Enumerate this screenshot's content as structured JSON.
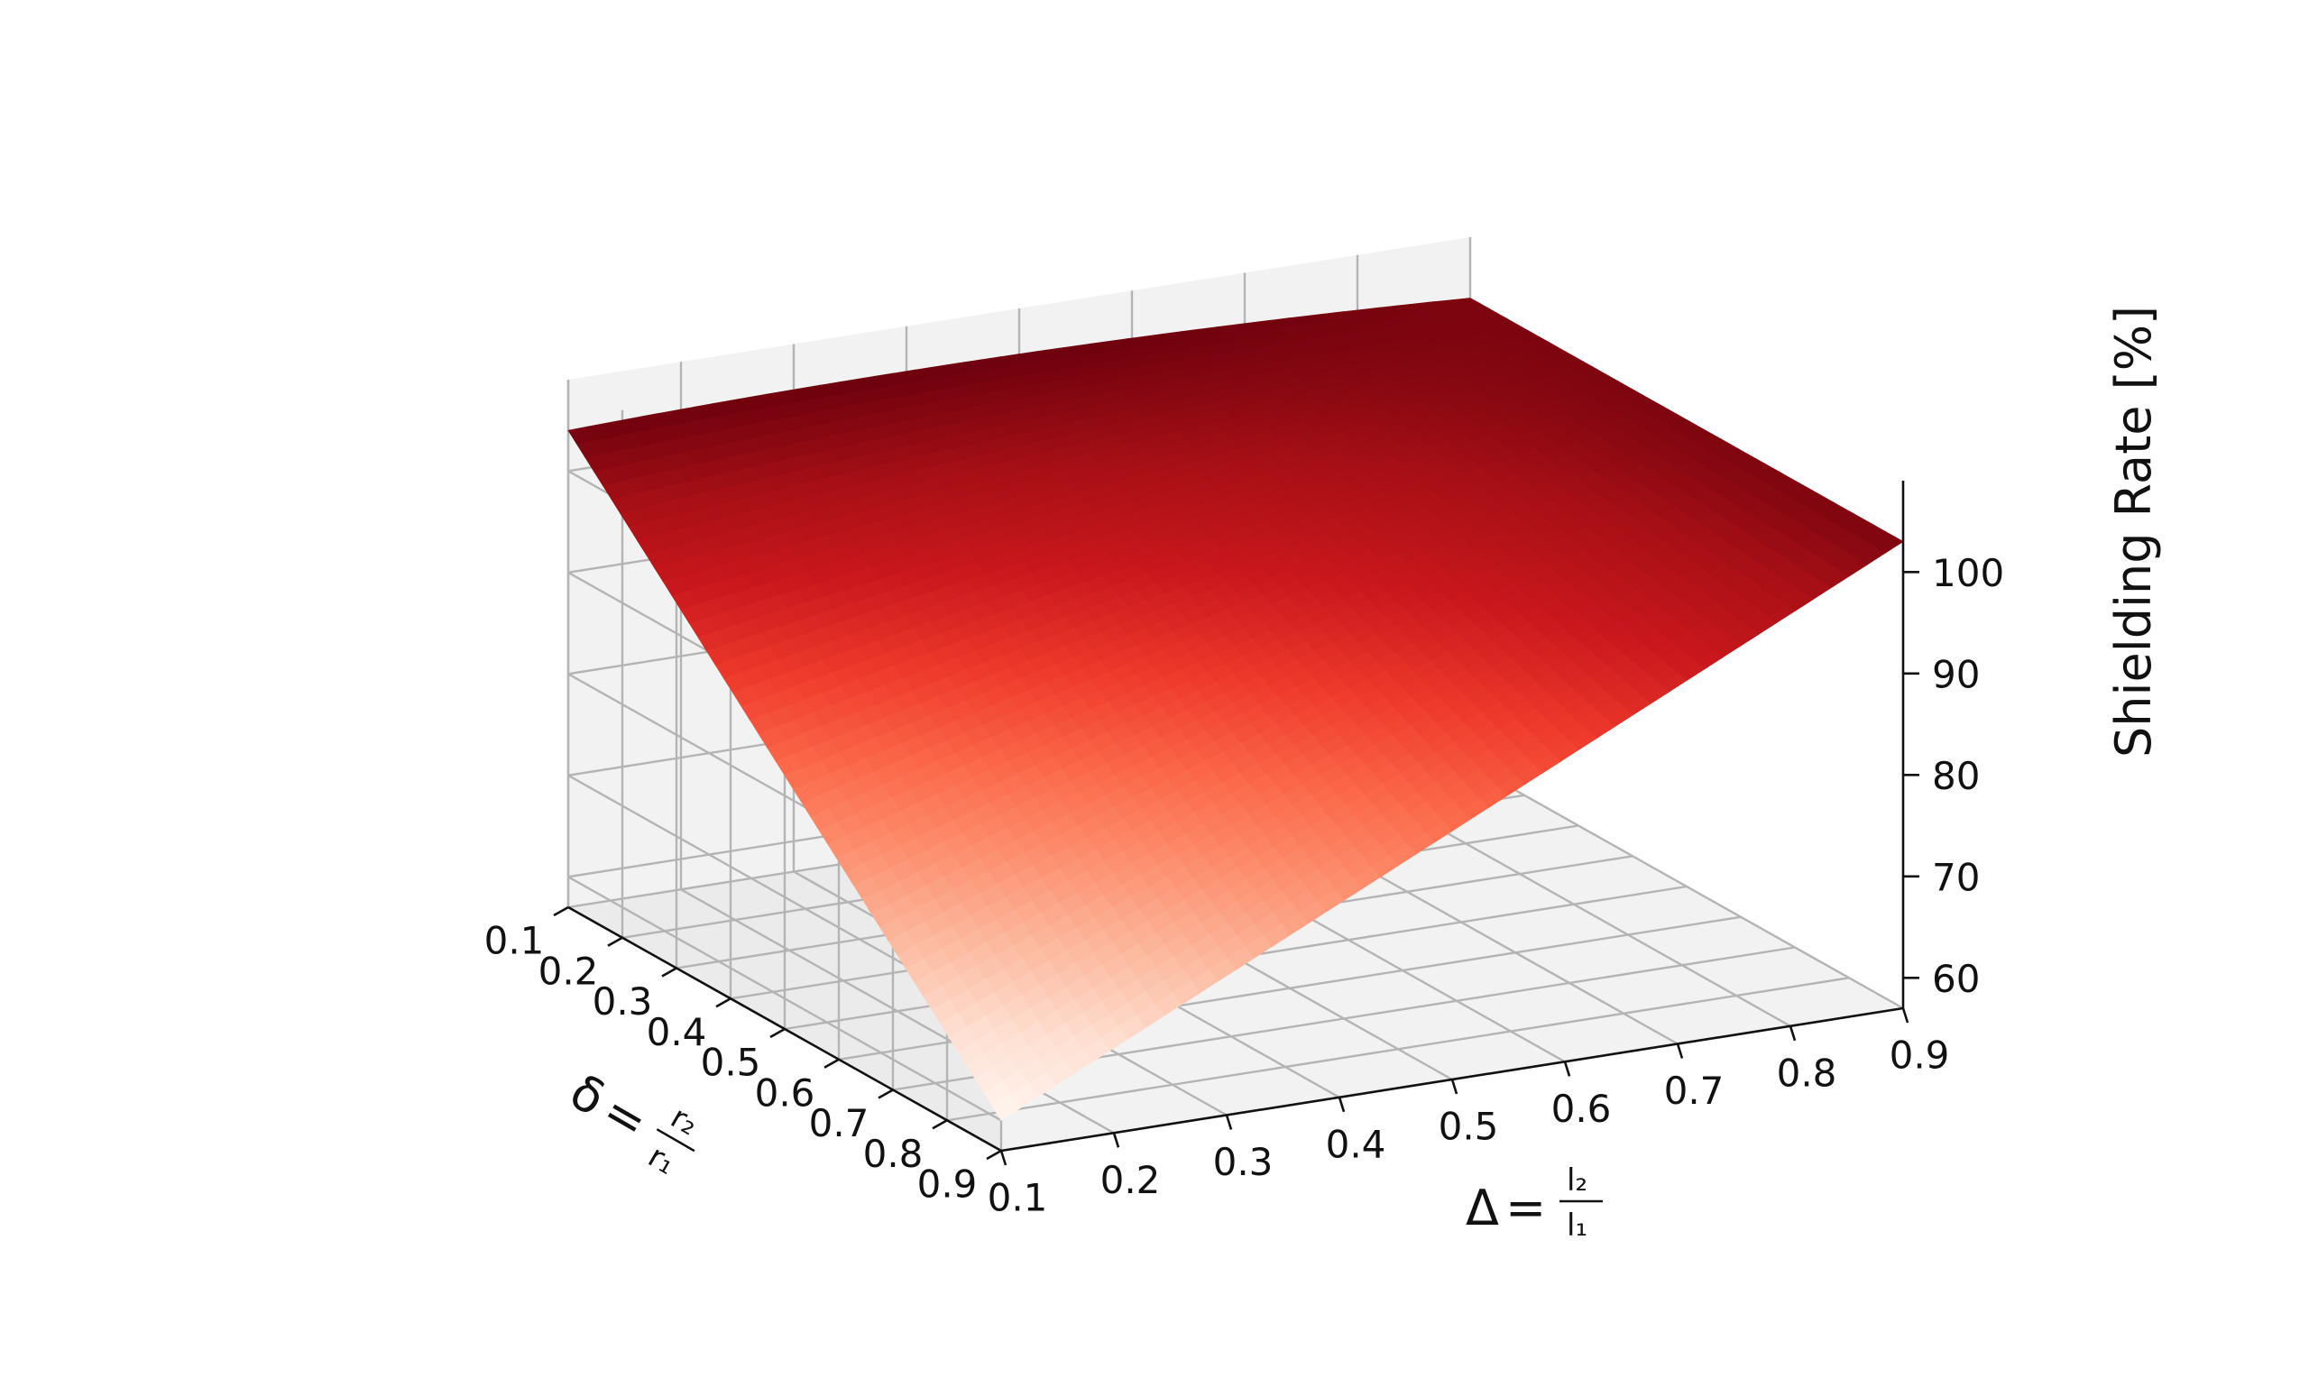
{
  "chart_data": {
    "type": "surface",
    "colormap": "Reds",
    "x_axis": {
      "symbol": "Δ",
      "numerator": "l₂",
      "denominator": "l₁",
      "ticks": [
        "0.1",
        "0.2",
        "0.3",
        "0.4",
        "0.5",
        "0.6",
        "0.7",
        "0.8",
        "0.9"
      ],
      "range": [
        0.1,
        0.9
      ]
    },
    "y_axis": {
      "symbol": "δ",
      "numerator": "r₂",
      "denominator": "r₁",
      "ticks": [
        "0.1",
        "0.2",
        "0.3",
        "0.4",
        "0.5",
        "0.6",
        "0.7",
        "0.8",
        "0.9"
      ],
      "range": [
        0.1,
        0.9
      ]
    },
    "z_axis": {
      "label": "Shielding Rate [%]",
      "ticks": [
        "60",
        "70",
        "80",
        "90",
        "100"
      ],
      "range": [
        57,
        109
      ]
    },
    "grid": true,
    "corner_values": {
      "delta_0.1_Delta_0.1": 104,
      "delta_0.1_Delta_0.9": 103,
      "delta_0.9_Delta_0.1": 60,
      "delta_0.9_Delta_0.9": 103
    },
    "min_value": 60,
    "max_value": 105
  }
}
